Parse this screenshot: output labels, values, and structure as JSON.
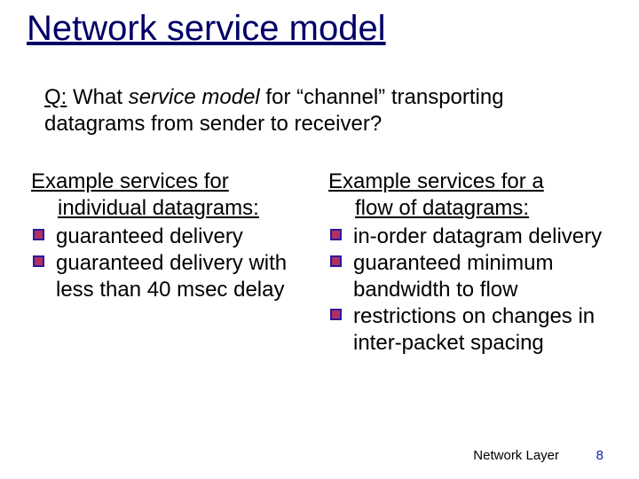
{
  "title": "Network service model",
  "question": {
    "lead": "Q:",
    "text_before": " What ",
    "italic": "service model",
    "text_after": " for “channel” transporting datagrams from sender to receiver?"
  },
  "left": {
    "heading_line1": "Example services for",
    "heading_line2": "individual datagrams:",
    "items": [
      "guaranteed delivery",
      "guaranteed delivery with less than 40 msec delay"
    ]
  },
  "right": {
    "heading_line1": "Example services for a",
    "heading_line2": "flow of datagrams:",
    "items": [
      "in-order datagram delivery",
      "guaranteed minimum bandwidth to flow",
      "restrictions on changes in inter-packet spacing"
    ]
  },
  "footer": {
    "label": "Network Layer",
    "page": "8"
  },
  "colors": {
    "title": "#000066",
    "bullet_fill": "#b03060",
    "bullet_border": "#2a1aa0",
    "pagenum": "#1020a0",
    "text": "#000000",
    "background": "#ffffff"
  }
}
